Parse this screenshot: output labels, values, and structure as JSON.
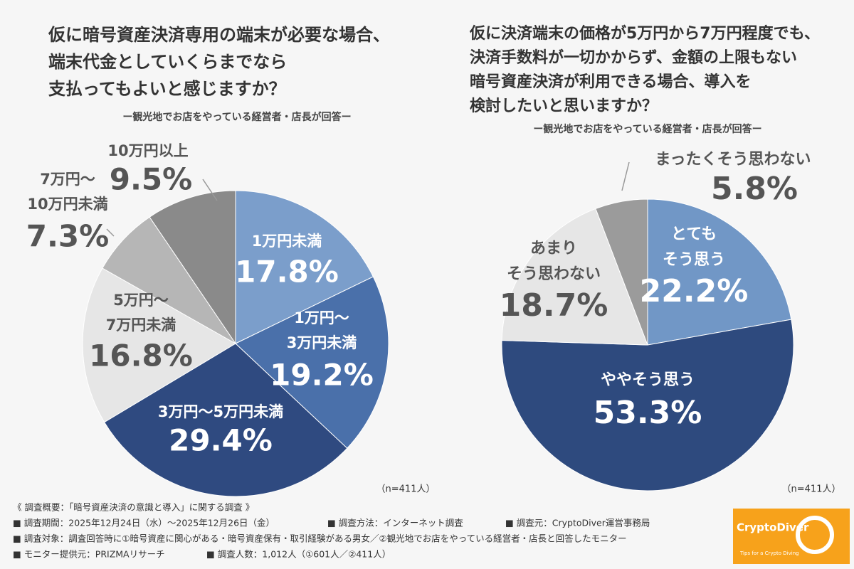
{
  "chart_data": [
    {
      "type": "pie",
      "title": "仮に暗号資産決済専用の端末が必要な場合、\n端末代金としていくらまでなら\n支払ってもよいと感じますか？",
      "subtitle": "ー観光地でお店をやっている経営者・店長が回答ー",
      "note": "（n=411人）",
      "categories": [
        "1万円未満",
        "1万円〜\n3万円未満",
        "3万円〜5万円未満",
        "5万円〜\n7万円未満",
        "7万円〜\n10万円未満",
        "10万円以上"
      ],
      "values": [
        17.8,
        19.2,
        29.4,
        16.8,
        7.3,
        9.5
      ],
      "value_labels": [
        "17.8%",
        "19.2%",
        "29.4%",
        "16.8%",
        "7.3%",
        "9.5%"
      ],
      "colors": [
        "#7b9ecb",
        "#4a70aa",
        "#2f4a80",
        "#e6e6e6",
        "#b6b6b6",
        "#8a8a8a"
      ]
    },
    {
      "type": "pie",
      "title": "仮に決済端末の価格が5万円から7万円程度でも、\n決済手数料が一切かからず、金額の上限もない\n暗号資産決済が利用できる場合、導入を\n検討したいと思いますか？",
      "subtitle": "ー観光地でお店をやっている経営者・店長が回答ー",
      "note": "（n=411人）",
      "categories": [
        "とても\nそう思う",
        "ややそう思う",
        "あまり\nそう思わない",
        "まったくそう思わない"
      ],
      "values": [
        22.2,
        53.3,
        18.7,
        5.8
      ],
      "value_labels": [
        "22.2%",
        "53.3%",
        "18.7%",
        "5.8%"
      ],
      "colors": [
        "#7197c6",
        "#2e4a7e",
        "#e6e6e6",
        "#9b9b9b"
      ]
    }
  ],
  "footer": {
    "heading": "《 調査概要：「暗号資産決済の意識と導入」に関する調査 》",
    "period": "■ 調査期間：2025年12月24日（水）〜2025年12月26日（金）",
    "method": "■ 調査方法：インターネット調査",
    "source": "■ 調査元：CryptoDiver運営事務局",
    "target": "■ 調査対象：調査回答時に①暗号資産に関心がある・暗号資産保有・取引経験がある男女／②観光地でお店をやっている経営者・店長と回答したモニター",
    "provider": "■ モニター提供元：PRIZMAリサーチ",
    "count": "■ 調査人数：1,012人（①601人／②411人）"
  },
  "logo": {
    "name": "CryptoDiver",
    "tagline": "Tips for a Crypto Diving"
  }
}
